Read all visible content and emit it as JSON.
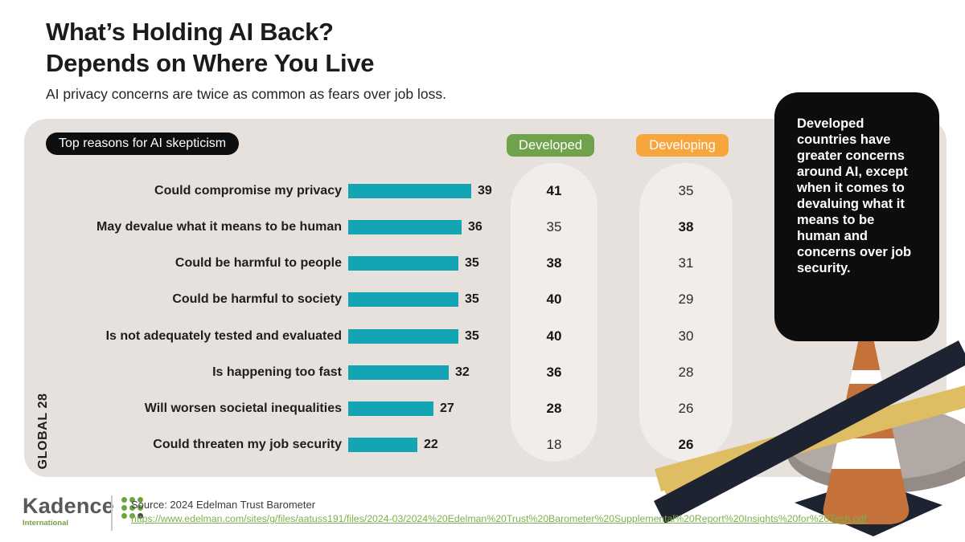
{
  "header": {
    "title_line1": "What’s Holding AI Back?",
    "title_line2": "Depends on Where You Live",
    "subtitle": "AI privacy concerns are twice as common as fears over job loss."
  },
  "panel": {
    "chart_label": "Top reasons for AI skepticism",
    "axis_group_label": "GLOBAL 28",
    "column_developed": "Developed",
    "column_developing": "Developing"
  },
  "callout": {
    "text": "Developed countries have greater concerns around AI, except when it comes to devaluing what it means to be human and concerns over job security."
  },
  "footer": {
    "brand": "Kadence",
    "brand_sub": "International",
    "source_label": "Source: 2024 Edelman Trust Barometer",
    "source_url": "https://www.edelman.com/sites/g/files/aatuss191/files/2024-03/2024%20Edelman%20Trust%20Barometer%20Supplemental%20Report%20Insights%20for%20Tech.pdf"
  },
  "colors": {
    "bar_teal": "#14a5b4",
    "developed_green": "#6fa24a",
    "developing_orange": "#f6a63c",
    "panel_bg": "#e6e1dd",
    "capsule_bg": "#f1edea",
    "callout_bg": "#0d0d0d",
    "tape_yellow": "#dfbd62",
    "tape_dark": "#1d2330",
    "cone_orange": "#c4713a",
    "link_green": "#7fae4e"
  },
  "chart_data": {
    "type": "bar",
    "title": "Top reasons for AI skepticism",
    "group_label": "GLOBAL 28",
    "orientation": "horizontal",
    "xlim": [
      0,
      45
    ],
    "grid": false,
    "categories": [
      "Could compromise my privacy",
      "May devalue what it means to be human",
      "Could be harmful to people",
      "Could be harmful to society",
      "Is not adequately tested and evaluated",
      "Is happening too fast",
      "Will worsen societal inequalities",
      "Could threaten my job security"
    ],
    "series": [
      {
        "name": "Global 28",
        "values": [
          39,
          36,
          35,
          35,
          35,
          32,
          27,
          22
        ]
      },
      {
        "name": "Developed",
        "values": [
          41,
          35,
          38,
          40,
          40,
          36,
          28,
          18
        ]
      },
      {
        "name": "Developing",
        "values": [
          35,
          38,
          31,
          29,
          30,
          28,
          26,
          26
        ]
      }
    ],
    "note": "Higher value of Developed vs Developing shown in bold"
  }
}
